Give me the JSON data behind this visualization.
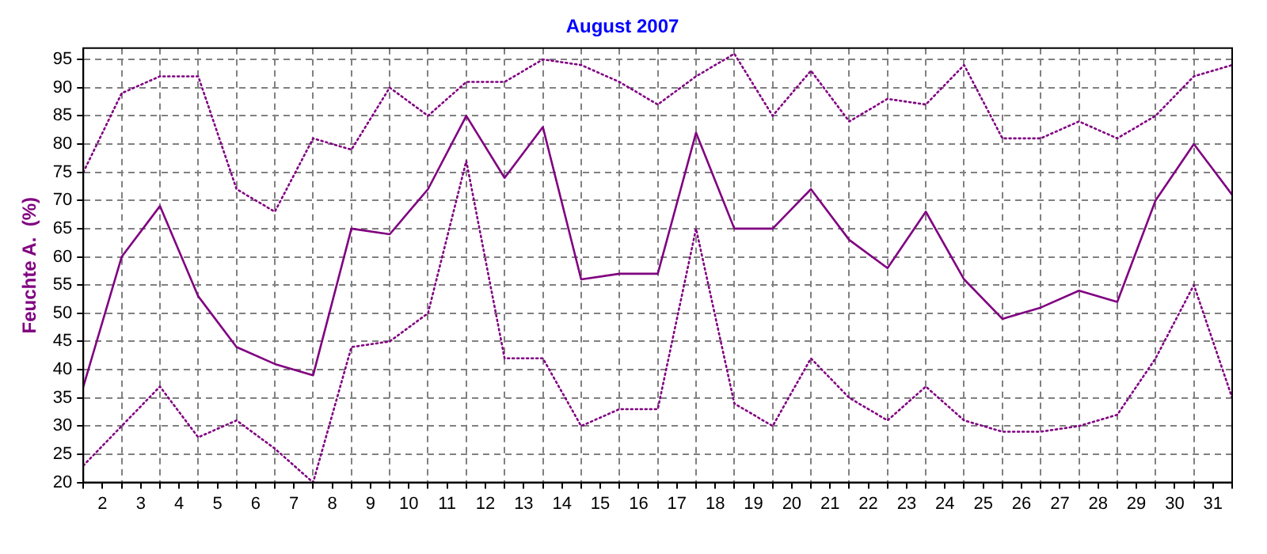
{
  "chart_data": {
    "type": "line",
    "title": "August 2007",
    "ylabel": "Feuchte A.  (%)",
    "x": [
      1.5,
      2.5,
      3.5,
      4.5,
      5.5,
      6.5,
      7.5,
      8.5,
      9.5,
      10.5,
      11.5,
      12.5,
      13.5,
      14.5,
      15.5,
      16.5,
      17.5,
      18.5,
      19.5,
      20.5,
      21.5,
      22.5,
      23.5,
      24.5,
      25.5,
      26.5,
      27.5,
      28.5,
      29.5,
      30.5,
      31.5
    ],
    "series": [
      {
        "color": "#800080",
        "line_style": "dotted",
        "values": [
          75,
          89,
          92,
          92,
          72,
          68,
          81,
          79,
          90,
          85,
          91,
          91,
          95,
          94,
          91,
          87,
          92,
          96,
          85,
          93,
          84,
          88,
          87,
          94,
          81,
          81,
          84,
          81,
          85,
          92,
          94
        ]
      },
      {
        "color": "#800080",
        "line_style": "solid",
        "values": [
          37,
          60,
          69,
          53,
          44,
          41,
          39,
          65,
          64,
          72,
          85,
          74,
          83,
          56,
          57,
          57,
          82,
          65,
          65,
          72,
          63,
          58,
          68,
          56,
          49,
          51,
          54,
          52,
          70,
          80,
          71
        ]
      },
      {
        "color": "#800080",
        "line_style": "dotted",
        "values": [
          23,
          30,
          37,
          28,
          31,
          26,
          20,
          44,
          45,
          50,
          77,
          42,
          42,
          30,
          33,
          33,
          65,
          34,
          30,
          42,
          35,
          31,
          37,
          31,
          29,
          29,
          30,
          32,
          42,
          55,
          35
        ]
      }
    ],
    "xlim": [
      1.5,
      31.5
    ],
    "xticks": [
      {
        "value": 1.5,
        "label": null
      },
      2,
      {
        "value": 2.5,
        "label": null
      },
      3,
      {
        "value": 3.5,
        "label": null
      },
      4,
      {
        "value": 4.5,
        "label": null
      },
      5,
      {
        "value": 5.5,
        "label": null
      },
      6,
      {
        "value": 6.5,
        "label": null
      },
      7,
      {
        "value": 7.5,
        "label": null
      },
      8,
      {
        "value": 8.5,
        "label": null
      },
      9,
      {
        "value": 9.5,
        "label": null
      },
      10,
      {
        "value": 10.5,
        "label": null
      },
      11,
      {
        "value": 11.5,
        "label": null
      },
      12,
      {
        "value": 12.5,
        "label": null
      },
      13,
      {
        "value": 13.5,
        "label": null
      },
      14,
      {
        "value": 14.5,
        "label": null
      },
      15,
      {
        "value": 15.5,
        "label": null
      },
      16,
      {
        "value": 16.5,
        "label": null
      },
      17,
      {
        "value": 17.5,
        "label": null
      },
      18,
      {
        "value": 18.5,
        "label": null
      },
      19,
      {
        "value": 19.5,
        "label": null
      },
      20,
      {
        "value": 20.5,
        "label": null
      },
      21,
      {
        "value": 21.5,
        "label": null
      },
      22,
      {
        "value": 22.5,
        "label": null
      },
      23,
      {
        "value": 23.5,
        "label": null
      },
      24,
      {
        "value": 24.5,
        "label": null
      },
      25,
      {
        "value": 25.5,
        "label": null
      },
      26,
      {
        "value": 26.5,
        "label": null
      },
      27,
      {
        "value": 27.5,
        "label": null
      },
      28,
      {
        "value": 28.5,
        "label": null
      },
      29,
      {
        "value": 29.5,
        "label": null
      },
      30,
      {
        "value": 30.5,
        "label": null
      },
      31,
      {
        "value": 31.5,
        "label": null
      }
    ],
    "ylim": [
      20,
      97
    ],
    "yticks": [
      20,
      25,
      30,
      35,
      40,
      45,
      50,
      55,
      60,
      65,
      70,
      75,
      80,
      85,
      90,
      95
    ],
    "grid": true,
    "legend": false,
    "marker": "none"
  }
}
